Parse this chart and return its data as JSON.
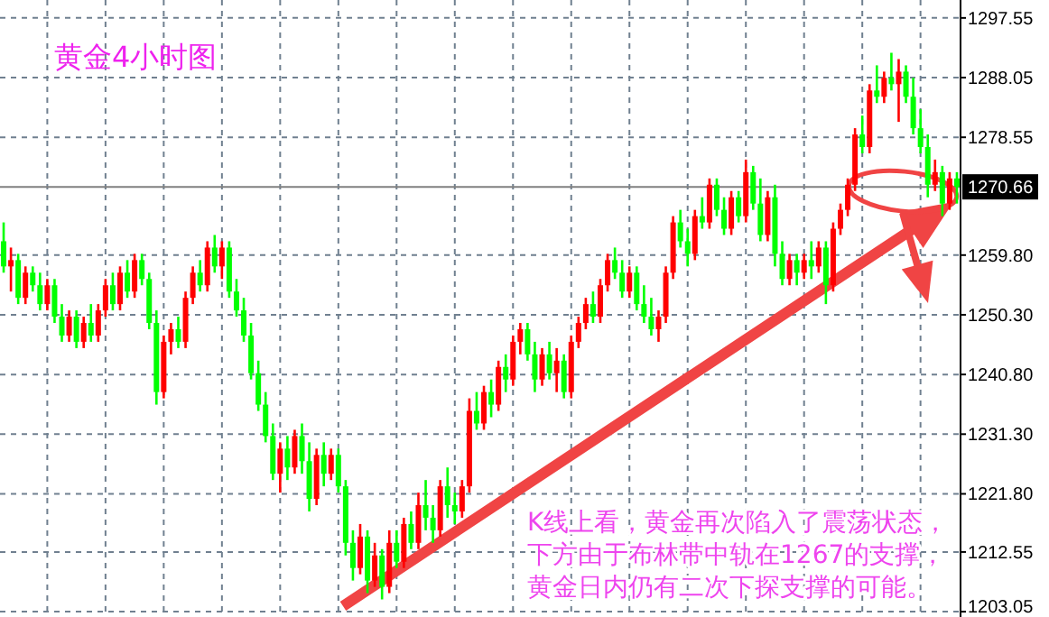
{
  "chart_data": {
    "type": "candlestick",
    "title": "黄金4小时图",
    "annotations": [
      "K线上看，黄金再次陷入了震荡状态，下方由于布林带中轨在1267的支撑，黄金日内仍有二次下探支撑的可能。"
    ],
    "categories": [
      null,
      null,
      null,
      null,
      null,
      null,
      null,
      null,
      null,
      null,
      null,
      null,
      null,
      null,
      null,
      null,
      null,
      null,
      null,
      null,
      null,
      null,
      null,
      null,
      null,
      null,
      null,
      null,
      null,
      null,
      null,
      null,
      null,
      null,
      null,
      null,
      null,
      null,
      null,
      null,
      null,
      null,
      null,
      null,
      null,
      null,
      null,
      null,
      null,
      null,
      null,
      null,
      null,
      null,
      null,
      null,
      null,
      null,
      null,
      null,
      null,
      null,
      null,
      null,
      null,
      null,
      null,
      null,
      null,
      null,
      null,
      null,
      null,
      null,
      null,
      null,
      null,
      null,
      null,
      null,
      null,
      null,
      null,
      null,
      null,
      null,
      null,
      null,
      null,
      null,
      null,
      null,
      null,
      null,
      null,
      null,
      null,
      null,
      null,
      null,
      null,
      null,
      null,
      null,
      null,
      null,
      null,
      null,
      null,
      null,
      null,
      null,
      null,
      null,
      null,
      null,
      null,
      null,
      null,
      null,
      null,
      null,
      null,
      null,
      null,
      null,
      null,
      null,
      null,
      null,
      null,
      null
    ],
    "ohlc": [
      [
        1262,
        1265,
        1257,
        1258
      ],
      [
        1258,
        1261,
        1254,
        1259
      ],
      [
        1259,
        1260,
        1252,
        1253
      ],
      [
        1253,
        1258,
        1252,
        1257
      ],
      [
        1257,
        1258,
        1254,
        1255
      ],
      [
        1255,
        1257,
        1251,
        1252
      ],
      [
        1252,
        1256,
        1251,
        1255
      ],
      [
        1255,
        1256,
        1249,
        1250
      ],
      [
        1250,
        1252,
        1246,
        1247
      ],
      [
        1247,
        1251,
        1246,
        1250
      ],
      [
        1250,
        1251,
        1245,
        1246
      ],
      [
        1246,
        1250,
        1245,
        1249
      ],
      [
        1249,
        1252,
        1246,
        1247
      ],
      [
        1247,
        1252,
        1246,
        1251
      ],
      [
        1251,
        1256,
        1250,
        1255
      ],
      [
        1255,
        1257,
        1251,
        1252
      ],
      [
        1252,
        1258,
        1251,
        1257
      ],
      [
        1257,
        1259,
        1253,
        1254
      ],
      [
        1254,
        1260,
        1253,
        1259
      ],
      [
        1259,
        1260,
        1255,
        1256
      ],
      [
        1256,
        1257,
        1248,
        1249
      ],
      [
        1249,
        1251,
        1236,
        1238
      ],
      [
        1238,
        1247,
        1237,
        1246
      ],
      [
        1246,
        1249,
        1244,
        1248
      ],
      [
        1248,
        1250,
        1245,
        1246
      ],
      [
        1246,
        1254,
        1245,
        1253
      ],
      [
        1253,
        1258,
        1252,
        1257
      ],
      [
        1257,
        1259,
        1254,
        1255
      ],
      [
        1255,
        1262,
        1254,
        1261
      ],
      [
        1261,
        1263,
        1257,
        1258
      ],
      [
        1258,
        1262,
        1256,
        1261
      ],
      [
        1261,
        1262,
        1253,
        1254
      ],
      [
        1254,
        1256,
        1250,
        1251
      ],
      [
        1251,
        1253,
        1246,
        1247
      ],
      [
        1247,
        1249,
        1240,
        1241
      ],
      [
        1241,
        1243,
        1235,
        1236
      ],
      [
        1236,
        1238,
        1230,
        1231
      ],
      [
        1231,
        1233,
        1224,
        1225
      ],
      [
        1225,
        1230,
        1222,
        1229
      ],
      [
        1229,
        1231,
        1224,
        1226
      ],
      [
        1226,
        1232,
        1225,
        1231
      ],
      [
        1231,
        1233,
        1225,
        1227
      ],
      [
        1227,
        1230,
        1219,
        1221
      ],
      [
        1221,
        1229,
        1220,
        1228
      ],
      [
        1228,
        1230,
        1223,
        1225
      ],
      [
        1225,
        1229,
        1224,
        1228
      ],
      [
        1228,
        1229,
        1222,
        1223
      ],
      [
        1223,
        1224,
        1212,
        1214
      ],
      [
        1214,
        1216,
        1208,
        1210
      ],
      [
        1210,
        1217,
        1209,
        1215
      ],
      [
        1215,
        1216,
        1206,
        1208
      ],
      [
        1208,
        1214,
        1207,
        1212
      ],
      [
        1212,
        1213,
        1205,
        1207
      ],
      [
        1207,
        1216,
        1206,
        1214
      ],
      [
        1214,
        1216,
        1210,
        1211
      ],
      [
        1211,
        1218,
        1210,
        1217
      ],
      [
        1217,
        1219,
        1213,
        1214
      ],
      [
        1214,
        1222,
        1213,
        1220
      ],
      [
        1220,
        1224,
        1216,
        1218
      ],
      [
        1218,
        1220,
        1214,
        1216
      ],
      [
        1216,
        1224,
        1215,
        1223
      ],
      [
        1223,
        1226,
        1218,
        1220
      ],
      [
        1220,
        1222,
        1217,
        1219
      ],
      [
        1219,
        1224,
        1218,
        1223
      ],
      [
        1223,
        1237,
        1222,
        1235
      ],
      [
        1235,
        1238,
        1232,
        1233
      ],
      [
        1233,
        1239,
        1232,
        1238
      ],
      [
        1238,
        1240,
        1234,
        1236
      ],
      [
        1236,
        1243,
        1235,
        1242
      ],
      [
        1242,
        1244,
        1238,
        1240
      ],
      [
        1240,
        1247,
        1239,
        1246
      ],
      [
        1246,
        1249,
        1244,
        1248
      ],
      [
        1248,
        1249,
        1243,
        1244
      ],
      [
        1244,
        1246,
        1238,
        1240
      ],
      [
        1240,
        1245,
        1239,
        1244
      ],
      [
        1244,
        1246,
        1240,
        1241
      ],
      [
        1241,
        1245,
        1238,
        1243
      ],
      [
        1243,
        1244,
        1237,
        1238
      ],
      [
        1238,
        1247,
        1237,
        1246
      ],
      [
        1246,
        1250,
        1245,
        1249
      ],
      [
        1249,
        1253,
        1248,
        1252
      ],
      [
        1252,
        1254,
        1249,
        1250
      ],
      [
        1250,
        1256,
        1249,
        1255
      ],
      [
        1255,
        1260,
        1254,
        1259
      ],
      [
        1259,
        1261,
        1256,
        1257
      ],
      [
        1257,
        1259,
        1253,
        1254
      ],
      [
        1254,
        1258,
        1253,
        1257
      ],
      [
        1257,
        1258,
        1251,
        1252
      ],
      [
        1252,
        1255,
        1249,
        1250
      ],
      [
        1250,
        1253,
        1247,
        1248
      ],
      [
        1248,
        1251,
        1246,
        1250
      ],
      [
        1250,
        1258,
        1249,
        1257
      ],
      [
        1257,
        1266,
        1256,
        1265
      ],
      [
        1265,
        1267,
        1261,
        1262
      ],
      [
        1262,
        1264,
        1258,
        1260
      ],
      [
        1260,
        1267,
        1259,
        1266
      ],
      [
        1266,
        1269,
        1264,
        1265
      ],
      [
        1265,
        1272,
        1264,
        1271
      ],
      [
        1271,
        1272,
        1266,
        1267
      ],
      [
        1267,
        1269,
        1263,
        1264
      ],
      [
        1264,
        1270,
        1263,
        1269
      ],
      [
        1269,
        1270,
        1265,
        1266
      ],
      [
        1266,
        1275,
        1265,
        1273
      ],
      [
        1273,
        1274,
        1267,
        1268
      ],
      [
        1268,
        1272,
        1262,
        1263
      ],
      [
        1263,
        1270,
        1262,
        1269
      ],
      [
        1269,
        1271,
        1258,
        1260
      ],
      [
        1260,
        1262,
        1255,
        1256
      ],
      [
        1256,
        1260,
        1255,
        1259
      ],
      [
        1259,
        1260,
        1255,
        1257
      ],
      [
        1257,
        1260,
        1256,
        1259
      ],
      [
        1259,
        1262,
        1256,
        1258
      ],
      [
        1258,
        1262,
        1257,
        1261
      ],
      [
        1261,
        1262,
        1252,
        1255
      ],
      [
        1255,
        1265,
        1254,
        1264
      ],
      [
        1264,
        1268,
        1263,
        1267
      ],
      [
        1267,
        1272,
        1266,
        1271
      ],
      [
        1271,
        1280,
        1270,
        1279
      ],
      [
        1279,
        1282,
        1276,
        1277
      ],
      [
        1277,
        1287,
        1276,
        1286
      ],
      [
        1286,
        1290,
        1284,
        1285
      ],
      [
        1285,
        1289,
        1284,
        1288
      ],
      [
        1288,
        1292,
        1286,
        1287
      ],
      [
        1287,
        1291,
        1281,
        1289
      ],
      [
        1289,
        1290,
        1284,
        1285
      ],
      [
        1285,
        1288,
        1279,
        1280
      ],
      [
        1280,
        1283,
        1276,
        1277
      ],
      [
        1277,
        1279,
        1269,
        1271
      ],
      [
        1271,
        1275,
        1270,
        1273
      ],
      [
        1273,
        1274,
        1266,
        1268
      ],
      [
        1268,
        1273,
        1267,
        1272
      ],
      [
        1272,
        1273,
        1268,
        1270.66
      ]
    ],
    "colors": [
      "#00ff00",
      "#ff0000",
      "#00ff00",
      "#ff0000",
      "#00ff00",
      "#00ff00",
      "#ff0000",
      "#00ff00",
      "#00ff00",
      "#ff0000",
      "#00ff00",
      "#ff0000",
      "#00ff00",
      "#ff0000",
      "#ff0000",
      "#00ff00",
      "#ff0000",
      "#00ff00",
      "#ff0000",
      "#00ff00",
      "#00ff00",
      "#00ff00",
      "#ff0000",
      "#ff0000",
      "#00ff00",
      "#ff0000",
      "#ff0000",
      "#00ff00",
      "#ff0000",
      "#00ff00",
      "#ff0000",
      "#00ff00",
      "#00ff00",
      "#00ff00",
      "#00ff00",
      "#00ff00",
      "#00ff00",
      "#00ff00",
      "#ff0000",
      "#00ff00",
      "#ff0000",
      "#00ff00",
      "#00ff00",
      "#ff0000",
      "#00ff00",
      "#ff0000",
      "#00ff00",
      "#00ff00",
      "#00ff00",
      "#ff0000",
      "#00ff00",
      "#ff0000",
      "#00ff00",
      "#ff0000",
      "#00ff00",
      "#ff0000",
      "#00ff00",
      "#ff0000",
      "#00ff00",
      "#00ff00",
      "#ff0000",
      "#00ff00",
      "#00ff00",
      "#ff0000",
      "#ff0000",
      "#00ff00",
      "#ff0000",
      "#00ff00",
      "#ff0000",
      "#00ff00",
      "#ff0000",
      "#ff0000",
      "#00ff00",
      "#00ff00",
      "#ff0000",
      "#00ff00",
      "#ff0000",
      "#00ff00",
      "#ff0000",
      "#ff0000",
      "#ff0000",
      "#00ff00",
      "#ff0000",
      "#ff0000",
      "#00ff00",
      "#00ff00",
      "#ff0000",
      "#00ff00",
      "#00ff00",
      "#00ff00",
      "#ff0000",
      "#ff0000",
      "#ff0000",
      "#00ff00",
      "#00ff00",
      "#ff0000",
      "#00ff00",
      "#ff0000",
      "#00ff00",
      "#00ff00",
      "#ff0000",
      "#00ff00",
      "#ff0000",
      "#00ff00",
      "#00ff00",
      "#ff0000",
      "#00ff00",
      "#00ff00",
      "#ff0000",
      "#00ff00",
      "#ff0000",
      "#00ff00",
      "#ff0000",
      "#00ff00",
      "#ff0000",
      "#ff0000",
      "#ff0000",
      "#ff0000",
      "#00ff00",
      "#ff0000",
      "#00ff00",
      "#ff0000",
      "#00ff00",
      "#ff0000",
      "#00ff00",
      "#00ff00",
      "#00ff00",
      "#00ff00",
      "#ff0000",
      "#00ff00",
      "#ff0000",
      "#00ff00"
    ],
    "ylim": [
      1202.2,
      1300.4
    ],
    "yticks": [
      {
        "value": 1297.55,
        "label": "1297.55"
      },
      {
        "value": 1288.05,
        "label": "1288.05"
      },
      {
        "value": 1278.55,
        "label": "1278.55"
      },
      {
        "value": 1259.8,
        "label": "1259.80"
      },
      {
        "value": 1250.3,
        "label": "1250.30"
      },
      {
        "value": 1240.8,
        "label": "1240.80"
      },
      {
        "value": 1231.3,
        "label": "1231.30"
      },
      {
        "value": 1221.8,
        "label": "1221.80"
      },
      {
        "value": 1212.55,
        "label": "1212.55"
      },
      {
        "value": 1203.05,
        "label": "1203.05"
      }
    ],
    "grid": true,
    "ref_lines": [
      {
        "axis": "y",
        "value": 1270.66,
        "label": "1270.66",
        "color": "#808080"
      }
    ]
  }
}
